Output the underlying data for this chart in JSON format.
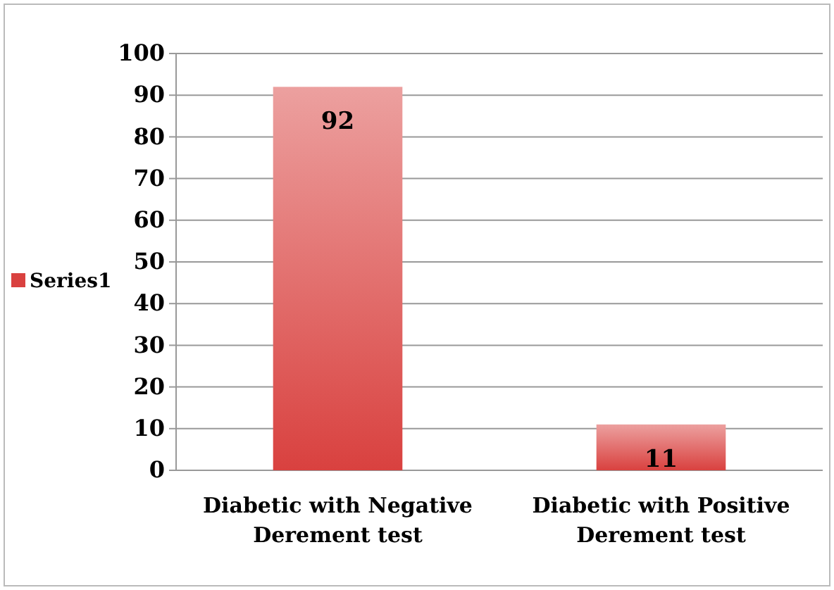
{
  "chart_data": {
    "type": "bar",
    "categories": [
      "Diabetic with Negative Derement test",
      "Diabetic with Positive Derement test"
    ],
    "series": [
      {
        "name": "Series1",
        "color": "#d9413f",
        "values": [
          92,
          11
        ]
      }
    ],
    "ylim": [
      0,
      100
    ],
    "yticks": [
      0,
      10,
      20,
      30,
      40,
      50,
      60,
      70,
      80,
      90,
      100
    ],
    "grid": "y",
    "legend": "left",
    "data_labels": true
  }
}
